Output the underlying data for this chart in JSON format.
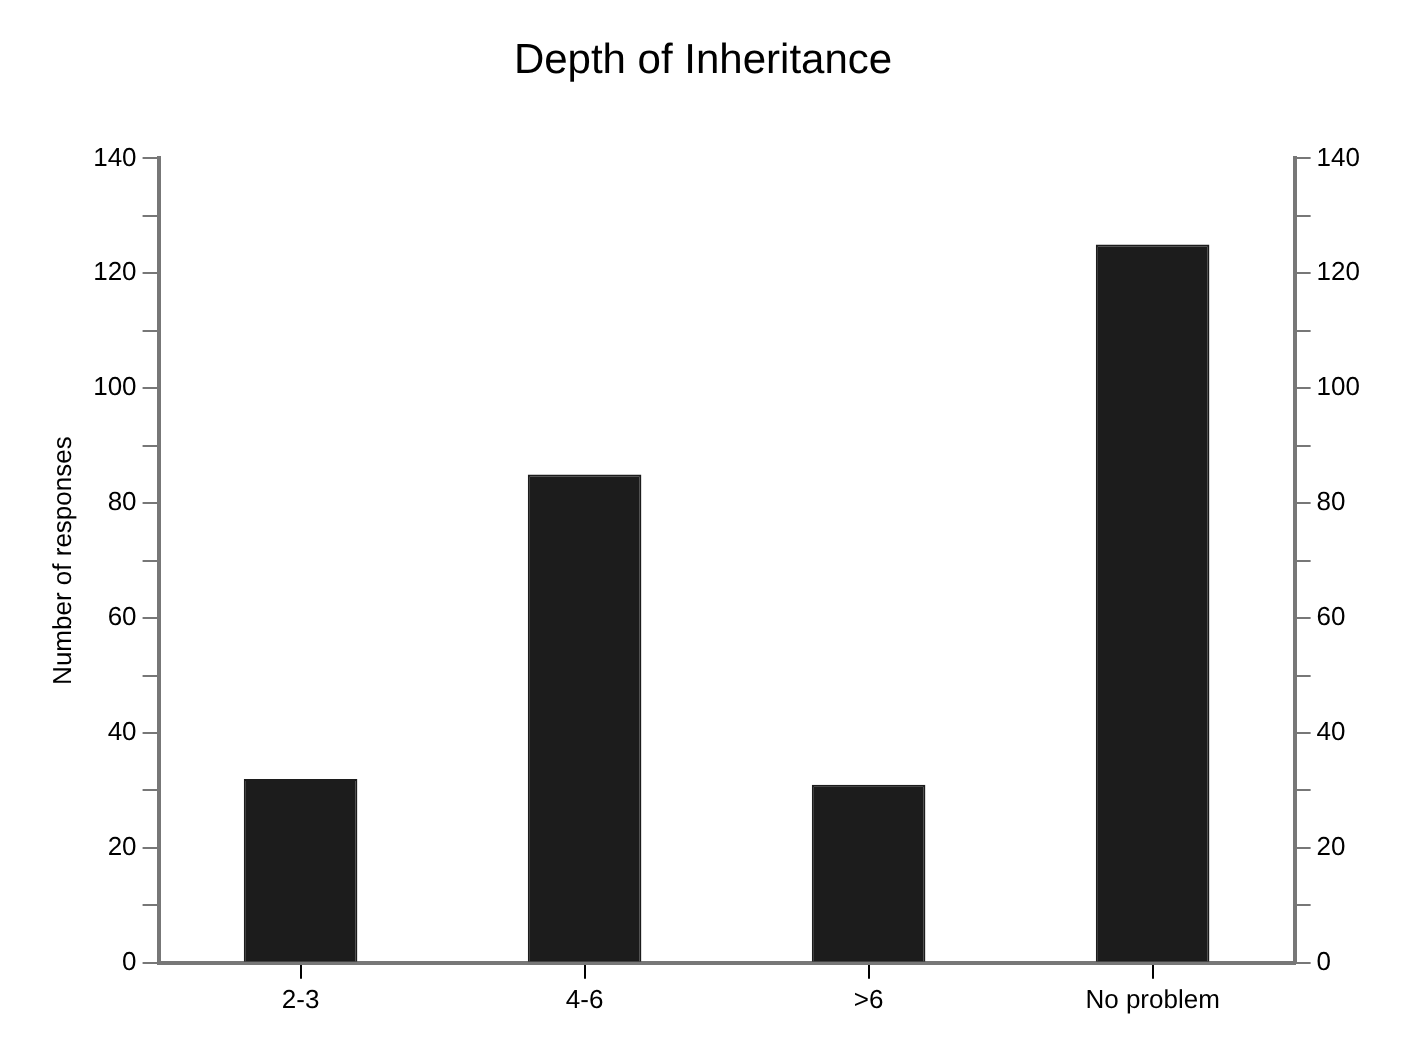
{
  "chart_data": {
    "type": "bar",
    "title": "Depth of Inheritance",
    "ylabel": "Number of responses",
    "categories": [
      "2-3",
      "4-6",
      ">6",
      "No problem"
    ],
    "values": [
      32,
      85,
      31,
      125
    ],
    "color": "#1c1c1c",
    "ylim": [
      0,
      140
    ],
    "yticks": [
      0,
      {
        "value": 10,
        "label": null
      },
      20,
      {
        "value": 30,
        "label": null
      },
      40,
      {
        "value": 50,
        "label": null
      },
      60,
      {
        "value": 70,
        "label": null
      },
      80,
      {
        "value": 90,
        "label": null
      },
      100,
      {
        "value": 110,
        "label": null
      },
      120,
      {
        "value": 130,
        "label": null
      },
      140
    ],
    "y2lim": [
      0,
      140
    ],
    "y2ticks": [
      0,
      {
        "value": 10,
        "label": null
      },
      20,
      {
        "value": 30,
        "label": null
      },
      40,
      {
        "value": 50,
        "label": null
      },
      60,
      {
        "value": 70,
        "label": null
      },
      80,
      {
        "value": 90,
        "label": null
      },
      100,
      {
        "value": 110,
        "label": null
      },
      120,
      {
        "value": 130,
        "label": null
      },
      140
    ],
    "grid": false,
    "legend": false
  }
}
